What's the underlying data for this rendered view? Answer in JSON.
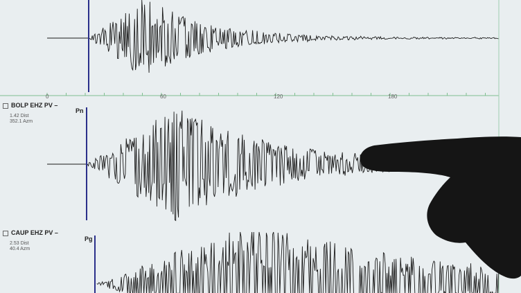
{
  "axis": {
    "ticks": [
      "0",
      "60",
      "120",
      "180"
    ]
  },
  "channels": [
    {
      "station": "BOLP EHZ PV –",
      "distance": "1.42 Dist",
      "azimuth": "352.1 Azm",
      "phase": "Pn",
      "checked": true
    },
    {
      "station": "CAUP EHZ PV –",
      "distance": "2.53 Dist",
      "azimuth": "40.4 Azm",
      "phase": "Pg",
      "checked": true
    }
  ],
  "colors": {
    "background": "#e9eef0",
    "trace": "#1a1a1a",
    "pick_line": "#2a2f8a",
    "axis": "#7fbf8f",
    "hand": "#151515"
  }
}
